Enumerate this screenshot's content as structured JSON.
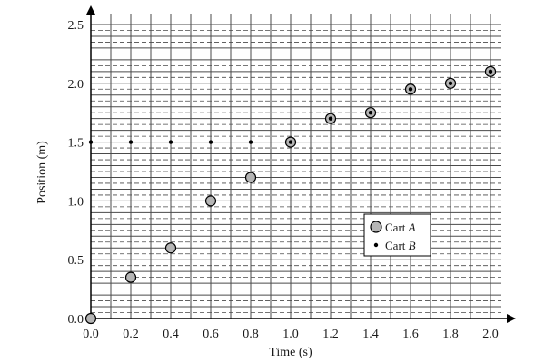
{
  "chart_data": {
    "type": "scatter",
    "xlabel": "Time (s)",
    "ylabel": "Position (m)",
    "xlim": [
      0,
      2.0
    ],
    "ylim": [
      0,
      2.5
    ],
    "x_ticks": [
      "0.0",
      "0.2",
      "0.4",
      "0.6",
      "0.8",
      "1.0",
      "1.2",
      "1.4",
      "1.6",
      "1.8",
      "2.0"
    ],
    "y_ticks": [
      "0.0",
      "0.5",
      "1.0",
      "1.5",
      "2.0",
      "2.5"
    ],
    "grid": true,
    "legend": "center-right",
    "series": [
      {
        "name": "Cart A",
        "legend_main": "Cart ",
        "legend_italic": "A",
        "marker": "large-gray-circle",
        "color": "#b5b5b5",
        "x": [
          0,
          0.2,
          0.4,
          0.6,
          0.8,
          1.0,
          1.2,
          1.4,
          1.6,
          1.8,
          2.0
        ],
        "y": [
          0,
          0.35,
          0.6,
          1.0,
          1.2,
          1.5,
          1.7,
          1.75,
          1.95,
          2.0,
          2.1
        ]
      },
      {
        "name": "Cart B",
        "legend_main": "Cart ",
        "legend_italic": "B",
        "marker": "small-black-dot",
        "color": "#000000",
        "x": [
          0,
          0.2,
          0.4,
          0.6,
          0.8,
          1.0,
          1.2,
          1.4,
          1.6,
          1.8,
          2.0
        ],
        "y": [
          1.5,
          1.5,
          1.5,
          1.5,
          1.5,
          1.5,
          1.7,
          1.75,
          1.95,
          2.0,
          2.1
        ]
      }
    ]
  }
}
